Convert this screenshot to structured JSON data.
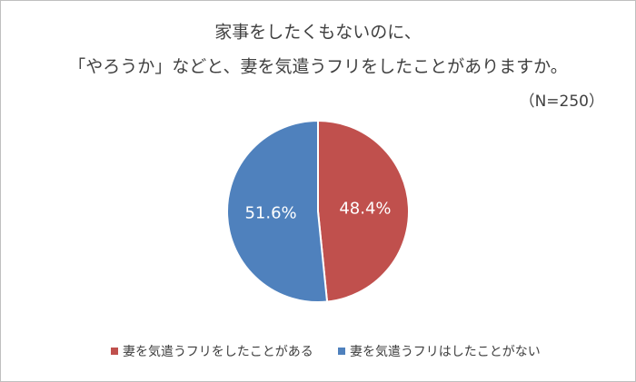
{
  "chart_data": {
    "type": "pie",
    "title": [
      "家事をしたくもないのに、",
      "「やろうか」などと、妻を気遣うフリをしたことがありますか。"
    ],
    "subtitle": "（N=250）",
    "categories": [
      "妻を気遣うフリをしたことがある",
      "妻を気遣うフリはしたことがない"
    ],
    "values": [
      48.4,
      51.6
    ],
    "value_labels": [
      "48.4%",
      "51.6%"
    ],
    "colors": [
      "#c0504d",
      "#4f81bd"
    ]
  }
}
